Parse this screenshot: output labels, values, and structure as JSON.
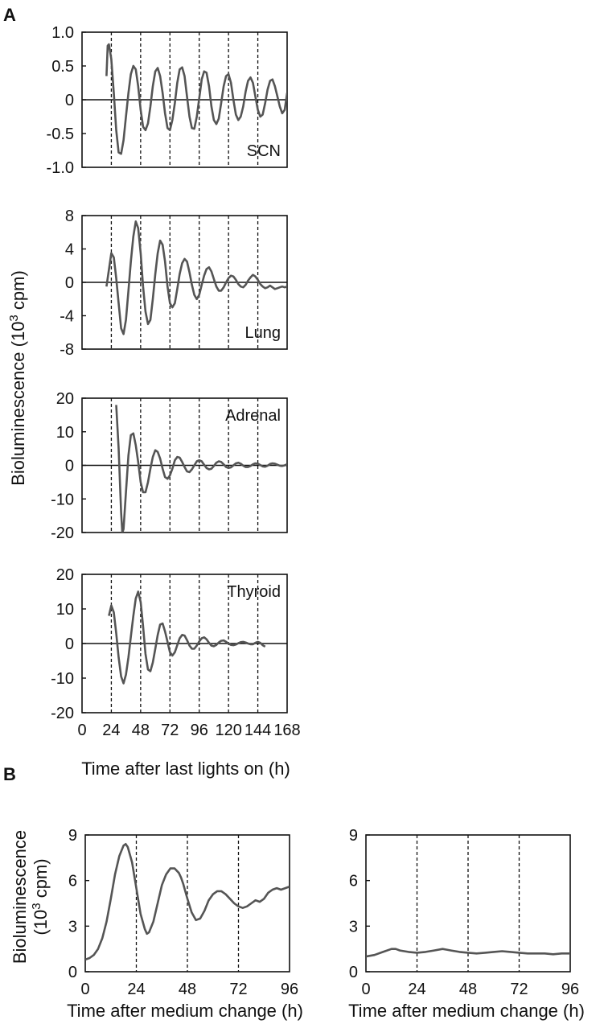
{
  "figure": {
    "panel_a_label": "A",
    "panel_b_label": "B",
    "a_ylabel": "Bioluminescence (10",
    "a_ylabel_sup": "3",
    "a_ylabel_tail": " cpm)",
    "a_xlabel": "Time after last lights on (h)",
    "b_ylabel_line1": "Bioluminescence",
    "b_ylabel_line2_pre": "(10",
    "b_ylabel_line2_sup": "3",
    "b_ylabel_line2_tail": " cpm)",
    "b_xlabel": "Time after medium change (h)"
  },
  "chart_data": [
    {
      "type": "line",
      "panel": "A",
      "label": "SCN",
      "xlim": [
        0,
        168
      ],
      "ylim": [
        -1.0,
        1.0
      ],
      "yticks": [
        "1.0",
        "0.5",
        "0",
        "-0.5",
        "-1.0"
      ],
      "ytick_values": [
        1.0,
        0.5,
        0,
        -0.5,
        -1.0
      ],
      "xtick_values": [
        24,
        48,
        72,
        96,
        120,
        144
      ],
      "grid": "vertical dashed at 24 h intervals",
      "zero_line": true,
      "label_position": "bottom-right",
      "series": [
        {
          "x": [
            20,
            21,
            22,
            24,
            26,
            28,
            30,
            32,
            34,
            36,
            38,
            40,
            42,
            44,
            46,
            48,
            50,
            52,
            54,
            56,
            58,
            60,
            62,
            64,
            66,
            68,
            70,
            72,
            74,
            76,
            78,
            80,
            82,
            84,
            86,
            88,
            90,
            92,
            94,
            96,
            98,
            100,
            102,
            104,
            106,
            108,
            110,
            112,
            114,
            116,
            118,
            120,
            122,
            124,
            126,
            128,
            130,
            132,
            134,
            136,
            138,
            140,
            142,
            144,
            146,
            148,
            150,
            152,
            154,
            156,
            158,
            160,
            162,
            164,
            166,
            168
          ],
          "values": [
            0.35,
            0.8,
            0.82,
            0.6,
            0.1,
            -0.45,
            -0.78,
            -0.8,
            -0.6,
            -0.25,
            0.1,
            0.38,
            0.5,
            0.45,
            0.2,
            -0.15,
            -0.4,
            -0.45,
            -0.35,
            -0.1,
            0.2,
            0.42,
            0.47,
            0.35,
            0.1,
            -0.2,
            -0.42,
            -0.45,
            -0.3,
            -0.05,
            0.25,
            0.45,
            0.48,
            0.35,
            0.05,
            -0.25,
            -0.42,
            -0.43,
            -0.25,
            0.02,
            0.3,
            0.42,
            0.4,
            0.2,
            -0.1,
            -0.3,
            -0.36,
            -0.28,
            -0.05,
            0.2,
            0.35,
            0.38,
            0.25,
            0.0,
            -0.22,
            -0.3,
            -0.25,
            -0.1,
            0.12,
            0.28,
            0.33,
            0.25,
            0.05,
            -0.15,
            -0.25,
            -0.22,
            -0.05,
            0.15,
            0.28,
            0.3,
            0.2,
            0.05,
            -0.1,
            -0.2,
            -0.15,
            0.1
          ]
        }
      ]
    },
    {
      "type": "line",
      "panel": "A",
      "label": "Lung",
      "xlim": [
        0,
        168
      ],
      "ylim": [
        -8,
        8
      ],
      "yticks": [
        "8",
        "4",
        "0",
        "-4",
        "-8"
      ],
      "ytick_values": [
        8,
        4,
        0,
        -4,
        -8
      ],
      "xtick_values": [
        24,
        48,
        72,
        96,
        120,
        144
      ],
      "grid": "vertical dashed at 24 h intervals",
      "zero_line": true,
      "label_position": "bottom-right",
      "series": [
        {
          "x": [
            20,
            22,
            24,
            26,
            28,
            30,
            32,
            34,
            36,
            38,
            40,
            42,
            44,
            46,
            48,
            50,
            52,
            54,
            56,
            58,
            60,
            62,
            64,
            66,
            68,
            70,
            72,
            74,
            76,
            78,
            80,
            82,
            84,
            86,
            88,
            90,
            92,
            94,
            96,
            98,
            100,
            102,
            104,
            106,
            108,
            110,
            112,
            114,
            116,
            118,
            120,
            122,
            124,
            126,
            128,
            130,
            132,
            134,
            136,
            138,
            140,
            142,
            144,
            146,
            148,
            150,
            152,
            154,
            156,
            158,
            160,
            162,
            164,
            166,
            168
          ],
          "values": [
            -0.5,
            1.5,
            3.5,
            3.0,
            0.5,
            -2.5,
            -5.5,
            -6.2,
            -4.5,
            -1.0,
            2.5,
            5.5,
            7.3,
            6.5,
            3.5,
            -0.5,
            -3.5,
            -5.0,
            -4.5,
            -2.0,
            1.0,
            3.5,
            5.0,
            4.5,
            2.5,
            -0.5,
            -2.5,
            -3.0,
            -2.5,
            -0.8,
            1.0,
            2.3,
            2.8,
            2.5,
            1.2,
            -0.3,
            -1.5,
            -2.0,
            -1.5,
            -0.3,
            0.8,
            1.6,
            1.8,
            1.3,
            0.4,
            -0.5,
            -1.0,
            -1.0,
            -0.6,
            0.0,
            0.5,
            0.8,
            0.7,
            0.3,
            -0.2,
            -0.5,
            -0.6,
            -0.3,
            0.2,
            0.6,
            0.9,
            0.7,
            0.3,
            -0.2,
            -0.5,
            -0.7,
            -0.6,
            -0.4,
            -0.6,
            -0.8,
            -0.7,
            -0.6,
            -0.5,
            -0.6,
            -0.5
          ]
        }
      ]
    },
    {
      "type": "line",
      "panel": "A",
      "label": "Adrenal",
      "xlim": [
        0,
        168
      ],
      "ylim": [
        -20,
        20
      ],
      "yticks": [
        "20",
        "10",
        "0",
        "-10",
        "-20"
      ],
      "ytick_values": [
        20,
        10,
        0,
        -10,
        -20
      ],
      "xtick_values": [
        24,
        48,
        72,
        96,
        120,
        144
      ],
      "grid": "vertical dashed at 24 h intervals",
      "zero_line": true,
      "label_position": "top-right",
      "series": [
        {
          "x": [
            28,
            30,
            32,
            33,
            34,
            36,
            38,
            40,
            42,
            44,
            46,
            48,
            50,
            52,
            54,
            56,
            58,
            60,
            62,
            64,
            66,
            68,
            70,
            72,
            74,
            76,
            78,
            80,
            82,
            84,
            86,
            88,
            90,
            92,
            94,
            96,
            98,
            100,
            102,
            104,
            106,
            108,
            110,
            112,
            114,
            116,
            118,
            120,
            122,
            124,
            126,
            128,
            130,
            132,
            134,
            136,
            138,
            140,
            142,
            144,
            146,
            148,
            150,
            152,
            154,
            156,
            158,
            160,
            162,
            164,
            166,
            168
          ],
          "values": [
            18,
            5,
            -14,
            -20,
            -19,
            -8,
            3,
            9,
            9.5,
            6,
            1,
            -5,
            -8,
            -8,
            -5,
            -1,
            2.5,
            4.5,
            4,
            2,
            -1,
            -3.5,
            -4,
            -3,
            -1,
            1.5,
            2.5,
            2.3,
            1,
            -0.5,
            -1.8,
            -2,
            -1.2,
            0,
            1.2,
            1.5,
            1.2,
            0.2,
            -0.8,
            -1.2,
            -1.0,
            -0.2,
            0.8,
            1.2,
            1.0,
            0.3,
            -0.5,
            -0.8,
            -0.6,
            0.0,
            0.6,
            0.8,
            0.5,
            -0.1,
            -0.5,
            -0.5,
            -0.2,
            0.3,
            0.6,
            0.5,
            0.1,
            -0.3,
            -0.4,
            -0.1,
            0.4,
            0.6,
            0.5,
            0.2,
            -0.1,
            -0.2,
            0.0,
            0.3
          ]
        }
      ]
    },
    {
      "type": "line",
      "panel": "A",
      "label": "Thyroid",
      "xlim": [
        0,
        168
      ],
      "ylim": [
        -20,
        20
      ],
      "yticks": [
        "20",
        "10",
        "0",
        "-10",
        "-20"
      ],
      "ytick_values": [
        20,
        10,
        0,
        -10,
        -20
      ],
      "xticks": [
        "0",
        "24",
        "48",
        "72",
        "96",
        "120",
        "144",
        "168"
      ],
      "xtick_values": [
        0,
        24,
        48,
        72,
        96,
        120,
        144,
        168
      ],
      "grid": "vertical dashed at 24 h intervals",
      "zero_line": true,
      "label_position": "top-right",
      "series": [
        {
          "x": [
            22,
            24,
            26,
            28,
            30,
            32,
            34,
            36,
            38,
            40,
            42,
            44,
            46,
            48,
            50,
            52,
            54,
            56,
            58,
            60,
            62,
            64,
            66,
            68,
            70,
            72,
            74,
            76,
            78,
            80,
            82,
            84,
            86,
            88,
            90,
            92,
            94,
            96,
            98,
            100,
            102,
            104,
            106,
            108,
            110,
            112,
            114,
            116,
            118,
            120,
            122,
            124,
            126,
            128,
            130,
            132,
            134,
            136,
            138,
            140,
            142,
            144,
            146,
            148,
            150
          ],
          "values": [
            8,
            11,
            9,
            3,
            -4,
            -9.5,
            -11.5,
            -9,
            -4,
            2,
            8,
            13,
            15,
            12,
            5,
            -3,
            -7.5,
            -8,
            -5.5,
            -1.5,
            2.5,
            5.5,
            5.8,
            3.5,
            0.5,
            -2.5,
            -3.5,
            -2.5,
            -0.5,
            1.5,
            2.5,
            2.3,
            1.0,
            -0.6,
            -1.5,
            -1.5,
            -0.6,
            0.6,
            1.5,
            1.8,
            1.2,
            0.2,
            -0.6,
            -0.8,
            -0.4,
            0.3,
            0.8,
            0.9,
            0.5,
            0.0,
            -0.4,
            -0.5,
            -0.3,
            0.1,
            0.4,
            0.5,
            0.3,
            0.0,
            -0.2,
            -0.2,
            0.2,
            0.5,
            0.2,
            -0.5,
            -0.9
          ]
        }
      ]
    },
    {
      "type": "line",
      "panel": "B",
      "label": "",
      "xlim": [
        0,
        96
      ],
      "ylim": [
        0,
        9
      ],
      "yticks": [
        "9",
        "6",
        "3",
        "0"
      ],
      "ytick_values": [
        9,
        6,
        3,
        0
      ],
      "xticks": [
        "0",
        "24",
        "48",
        "72",
        "96"
      ],
      "xtick_values": [
        0,
        24,
        48,
        72,
        96
      ],
      "grid": "vertical dashed at 24 h intervals",
      "series": [
        {
          "x": [
            0,
            2,
            4,
            6,
            8,
            10,
            12,
            14,
            16,
            18,
            19,
            20,
            22,
            24,
            26,
            28,
            29,
            30,
            32,
            34,
            36,
            38,
            40,
            42,
            44,
            45,
            46,
            48,
            50,
            52,
            54,
            56,
            58,
            60,
            62,
            64,
            66,
            68,
            70,
            72,
            74,
            76,
            78,
            80,
            82,
            84,
            86,
            88,
            90,
            92,
            94,
            96
          ],
          "values": [
            0.8,
            0.9,
            1.1,
            1.5,
            2.2,
            3.3,
            4.8,
            6.4,
            7.6,
            8.3,
            8.4,
            8.2,
            7.2,
            5.5,
            3.8,
            2.8,
            2.5,
            2.6,
            3.3,
            4.5,
            5.7,
            6.4,
            6.8,
            6.8,
            6.5,
            6.2,
            5.8,
            4.8,
            3.9,
            3.4,
            3.5,
            4.0,
            4.7,
            5.1,
            5.3,
            5.3,
            5.1,
            4.8,
            4.5,
            4.3,
            4.2,
            4.3,
            4.5,
            4.7,
            4.6,
            4.8,
            5.2,
            5.4,
            5.5,
            5.4,
            5.5,
            5.6
          ]
        }
      ]
    },
    {
      "type": "line",
      "panel": "B",
      "label": "",
      "xlim": [
        0,
        96
      ],
      "ylim": [
        0,
        9
      ],
      "yticks": [
        "9",
        "6",
        "3",
        "0"
      ],
      "ytick_values": [
        9,
        6,
        3,
        0
      ],
      "xticks": [
        "0",
        "24",
        "48",
        "72",
        "96"
      ],
      "xtick_values": [
        0,
        24,
        48,
        72,
        96
      ],
      "grid": "vertical dashed at 24 h intervals",
      "series": [
        {
          "x": [
            0,
            4,
            8,
            12,
            14,
            16,
            20,
            24,
            28,
            32,
            36,
            38,
            40,
            44,
            48,
            52,
            56,
            60,
            64,
            68,
            72,
            76,
            80,
            84,
            88,
            92,
            96
          ],
          "values": [
            1.0,
            1.1,
            1.3,
            1.5,
            1.5,
            1.4,
            1.3,
            1.25,
            1.3,
            1.4,
            1.5,
            1.45,
            1.4,
            1.3,
            1.25,
            1.2,
            1.25,
            1.3,
            1.35,
            1.3,
            1.25,
            1.2,
            1.2,
            1.2,
            1.15,
            1.2,
            1.2
          ]
        }
      ]
    }
  ]
}
